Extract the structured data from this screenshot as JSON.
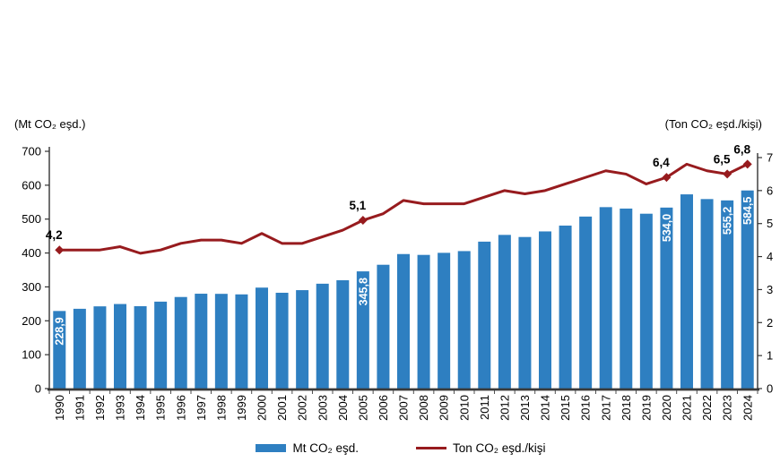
{
  "chart_data": {
    "type": "bar+line",
    "categories": [
      "1990",
      "1991",
      "1992",
      "1993",
      "1994",
      "1995",
      "1996",
      "1997",
      "1998",
      "1999",
      "2000",
      "2001",
      "2002",
      "2003",
      "2004",
      "2005",
      "2006",
      "2007",
      "2008",
      "2009",
      "2010",
      "2011",
      "2012",
      "2013",
      "2014",
      "2015",
      "2016",
      "2017",
      "2018",
      "2019",
      "2020",
      "2021",
      "2022",
      "2023",
      "2024"
    ],
    "left_axis": {
      "title": "(Mt CO₂ eşd.)",
      "min": 0,
      "max": 700,
      "tick_step": 100,
      "tick_labels": [
        "0",
        "100",
        "200",
        "300",
        "400",
        "500",
        "600",
        "700"
      ]
    },
    "right_axis": {
      "title": "(Ton CO₂ eşd./kişi)",
      "min": 0,
      "max": 7,
      "tick_step": 1,
      "tick_labels": [
        "0",
        "1",
        "2",
        "3",
        "4",
        "5",
        "6",
        "7"
      ]
    },
    "series": [
      {
        "name": "Mt CO₂ eşd.",
        "type": "bar",
        "color": "#2E7FC1",
        "values": [
          228.9,
          235.4,
          242.6,
          249.5,
          243.1,
          256.5,
          270.2,
          279.9,
          279.5,
          277.9,
          297.9,
          282.7,
          290.4,
          309.4,
          319.6,
          345.8,
          365.3,
          396.9,
          394.4,
          400.5,
          405.6,
          433.5,
          453.4,
          447.2,
          463.7,
          480.9,
          507.5,
          535.3,
          531.1,
          515.9,
          534.0,
          573.0,
          559.1,
          555.2,
          584.5
        ],
        "value_labels": {
          "1990": "228,9",
          "2005": "345,8",
          "2020": "534,0",
          "2023": "555,2",
          "2024": "584,5"
        }
      },
      {
        "name": "Ton CO₂ eşd./kişi",
        "type": "line",
        "color": "#971B1E",
        "values": [
          4.2,
          4.2,
          4.2,
          4.3,
          4.1,
          4.2,
          4.4,
          4.5,
          4.5,
          4.4,
          4.7,
          4.4,
          4.4,
          4.6,
          4.8,
          5.1,
          5.3,
          5.7,
          5.6,
          5.6,
          5.6,
          5.8,
          6.0,
          5.9,
          6.0,
          6.2,
          6.4,
          6.6,
          6.5,
          6.2,
          6.4,
          6.8,
          6.6,
          6.5,
          6.8
        ],
        "value_labels": {
          "1990": "4,2",
          "2005": "5,1",
          "2020": "6,4",
          "2023": "6,5",
          "2024": "6,8"
        }
      }
    ],
    "legend": {
      "position": "bottom",
      "items": [
        "Mt CO₂ eşd.",
        "Ton CO₂ eşd./kişi"
      ]
    },
    "grid": "off",
    "axis_color": "#333333",
    "text_color": "#000000"
  }
}
